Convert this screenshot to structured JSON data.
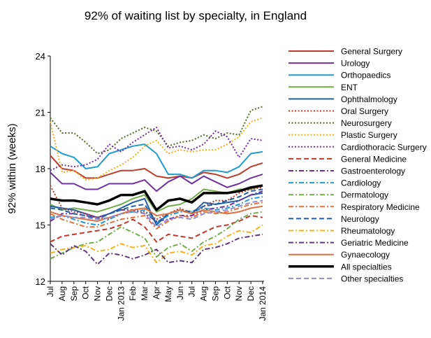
{
  "chart_data": {
    "type": "line",
    "title": "92% of waiting list by specialty, in England",
    "xlabel": "",
    "ylabel": "92% within (weeks)",
    "ylim": [
      12,
      24
    ],
    "yticks": [
      12,
      15,
      18,
      21,
      24
    ],
    "grid": "none",
    "legend_position": "right",
    "x": [
      "Jul",
      "Aug",
      "Sep",
      "Oct",
      "Nov",
      "Dec",
      "Jan 2013",
      "Feb",
      "Mar",
      "Apr",
      "May",
      "Jun",
      "Jul",
      "Aug",
      "Sep",
      "Oct",
      "Nov",
      "Dec",
      "Jan 2014"
    ],
    "series": [
      {
        "name": "General Surgery",
        "color": "#c0392b",
        "dash": "solid",
        "width": 2,
        "values": [
          18.7,
          18.0,
          17.9,
          17.5,
          17.5,
          17.7,
          17.9,
          17.9,
          18.0,
          17.6,
          17.5,
          17.6,
          17.5,
          17.8,
          17.7,
          17.5,
          17.7,
          18.1,
          18.3
        ]
      },
      {
        "name": "Urology",
        "color": "#7030a0",
        "dash": "solid",
        "width": 2,
        "values": [
          17.8,
          17.2,
          17.2,
          16.9,
          16.9,
          17.2,
          17.2,
          17.2,
          17.4,
          16.8,
          17.3,
          17.6,
          17.2,
          17.6,
          17.3,
          17.0,
          17.2,
          17.5,
          17.7
        ]
      },
      {
        "name": "Orthopaedics",
        "color": "#1f9bcf",
        "dash": "solid",
        "width": 2,
        "values": [
          19.2,
          18.8,
          18.6,
          18.0,
          18.1,
          18.8,
          19.0,
          19.2,
          19.3,
          18.8,
          17.7,
          17.7,
          17.5,
          17.9,
          17.9,
          17.8,
          18.1,
          18.8,
          18.9
        ]
      },
      {
        "name": "ENT",
        "color": "#70ad47",
        "dash": "solid",
        "width": 2,
        "values": [
          16.1,
          15.8,
          15.9,
          15.8,
          15.7,
          15.9,
          16.1,
          16.4,
          16.6,
          15.7,
          16.0,
          16.1,
          16.4,
          16.9,
          16.8,
          16.7,
          16.9,
          16.9,
          17.1
        ]
      },
      {
        "name": "Ophthalmology",
        "color": "#1f5fa5",
        "dash": "solid",
        "width": 2,
        "values": [
          16.0,
          15.9,
          15.8,
          15.6,
          15.4,
          15.6,
          15.9,
          16.2,
          16.4,
          15.0,
          15.6,
          15.8,
          15.6,
          16.2,
          16.1,
          16.2,
          16.3,
          16.6,
          16.7
        ]
      },
      {
        "name": "Oral Surgery",
        "color": "#c0392b",
        "dash": "dot",
        "width": 2,
        "values": [
          17.1,
          15.9,
          15.7,
          15.6,
          15.4,
          15.3,
          15.6,
          15.8,
          15.7,
          15.3,
          15.6,
          15.9,
          15.6,
          16.0,
          16.3,
          16.3,
          16.7,
          16.9,
          17.0
        ]
      },
      {
        "name": "Neurosurgery",
        "color": "#4e6b2a",
        "dash": "dot",
        "width": 2,
        "values": [
          20.7,
          19.9,
          19.9,
          19.4,
          18.8,
          19.0,
          19.6,
          19.9,
          20.2,
          20.0,
          19.2,
          19.4,
          19.5,
          19.8,
          19.6,
          19.9,
          19.8,
          21.1,
          21.3
        ]
      },
      {
        "name": "Plastic Surgery",
        "color": "#f5b11a",
        "dash": "dot",
        "width": 2,
        "values": [
          20.5,
          17.8,
          17.9,
          17.4,
          17.5,
          17.9,
          18.2,
          18.6,
          19.2,
          19.5,
          18.8,
          19.0,
          18.9,
          19.0,
          19.0,
          19.3,
          19.7,
          20.5,
          20.7
        ]
      },
      {
        "name": "Cardiothoracic Surgery",
        "color": "#7030a0",
        "dash": "dot",
        "width": 2,
        "values": [
          17.9,
          18.2,
          18.1,
          18.2,
          18.5,
          19.3,
          18.9,
          19.4,
          19.8,
          20.2,
          19.1,
          19.2,
          19.0,
          19.3,
          20.0,
          19.7,
          18.6,
          19.6,
          19.5
        ]
      },
      {
        "name": "General Medicine",
        "color": "#c0392b",
        "dash": "dash",
        "width": 2,
        "values": [
          14.1,
          14.4,
          14.5,
          14.6,
          14.7,
          14.8,
          15.0,
          15.3,
          14.9,
          14.1,
          14.5,
          14.4,
          14.3,
          14.6,
          14.9,
          15.0,
          15.2,
          15.5,
          15.4
        ]
      },
      {
        "name": "Gastroenterology",
        "color": "#7030a0",
        "dash": "dashdot",
        "width": 2,
        "values": [
          15.2,
          15.6,
          15.6,
          15.5,
          15.4,
          15.6,
          15.8,
          15.8,
          15.6,
          15.2,
          15.3,
          15.5,
          15.5,
          15.8,
          15.9,
          16.0,
          16.3,
          16.6,
          16.8
        ]
      },
      {
        "name": "Cardiology",
        "color": "#1f9bcf",
        "dash": "dashdot",
        "width": 2,
        "values": [
          15.4,
          15.5,
          15.3,
          15.1,
          15.0,
          15.3,
          15.6,
          15.7,
          15.8,
          15.1,
          15.5,
          15.7,
          15.7,
          15.9,
          15.8,
          15.9,
          16.1,
          16.4,
          16.5
        ]
      },
      {
        "name": "Dermatology",
        "color": "#70ad47",
        "dash": "dashdot",
        "width": 2,
        "values": [
          13.2,
          13.5,
          13.8,
          14.0,
          14.1,
          14.5,
          14.9,
          14.6,
          14.3,
          13.3,
          13.8,
          14.0,
          13.6,
          14.1,
          14.4,
          14.8,
          15.3,
          15.6,
          15.7
        ]
      },
      {
        "name": "Respiratory Medicine",
        "color": "#e2703a",
        "dash": "dashdot",
        "width": 2,
        "values": [
          15.6,
          15.3,
          15.1,
          14.9,
          14.9,
          15.1,
          15.3,
          15.4,
          15.5,
          14.8,
          15.2,
          15.5,
          15.4,
          15.7,
          15.6,
          15.7,
          15.9,
          16.1,
          16.2
        ]
      },
      {
        "name": "Neurology",
        "color": "#1f5fa5",
        "dash": "dash",
        "width": 2,
        "values": [
          15.9,
          15.8,
          15.6,
          15.5,
          15.3,
          15.6,
          15.8,
          16.0,
          16.1,
          15.1,
          15.6,
          15.8,
          15.7,
          16.0,
          16.1,
          16.3,
          16.5,
          16.8,
          16.9
        ]
      },
      {
        "name": "Rheumatology",
        "color": "#f5b11a",
        "dash": "dashdot",
        "width": 2,
        "values": [
          13.5,
          13.7,
          13.8,
          13.9,
          13.6,
          13.7,
          14.0,
          13.8,
          13.9,
          13.0,
          13.5,
          13.6,
          13.4,
          13.9,
          14.0,
          14.4,
          14.7,
          14.6,
          15.0
        ]
      },
      {
        "name": "Geriatric Medicine",
        "color": "#5c3a7a",
        "dash": "dashdot",
        "width": 2,
        "values": [
          14.0,
          13.4,
          13.9,
          13.6,
          12.9,
          13.5,
          13.4,
          13.2,
          13.4,
          13.7,
          13.0,
          13.1,
          13.0,
          13.7,
          13.8,
          14.0,
          14.3,
          14.4,
          14.5
        ]
      },
      {
        "name": "Gynaecology",
        "color": "#e2703a",
        "dash": "solid",
        "width": 2,
        "values": [
          15.7,
          15.5,
          15.4,
          15.3,
          15.2,
          15.4,
          15.6,
          15.8,
          15.9,
          15.5,
          15.6,
          15.8,
          15.6,
          15.8,
          15.7,
          15.6,
          15.7,
          15.9,
          16.0
        ]
      },
      {
        "name": "All specialties",
        "color": "#000000",
        "dash": "solid",
        "width": 3.5,
        "values": [
          16.4,
          16.3,
          16.3,
          16.2,
          16.1,
          16.3,
          16.6,
          16.6,
          16.8,
          15.8,
          16.3,
          16.4,
          16.2,
          16.7,
          16.7,
          16.7,
          16.8,
          17.0,
          17.1
        ]
      },
      {
        "name": "Other specialties",
        "color": "#8e8ecf",
        "dash": "dash",
        "width": 2,
        "values": [
          15.3,
          15.5,
          15.4,
          15.4,
          15.3,
          15.4,
          15.6,
          15.7,
          15.6,
          14.9,
          15.3,
          15.4,
          15.3,
          15.6,
          15.7,
          15.8,
          16.0,
          16.2,
          16.3
        ]
      }
    ]
  }
}
